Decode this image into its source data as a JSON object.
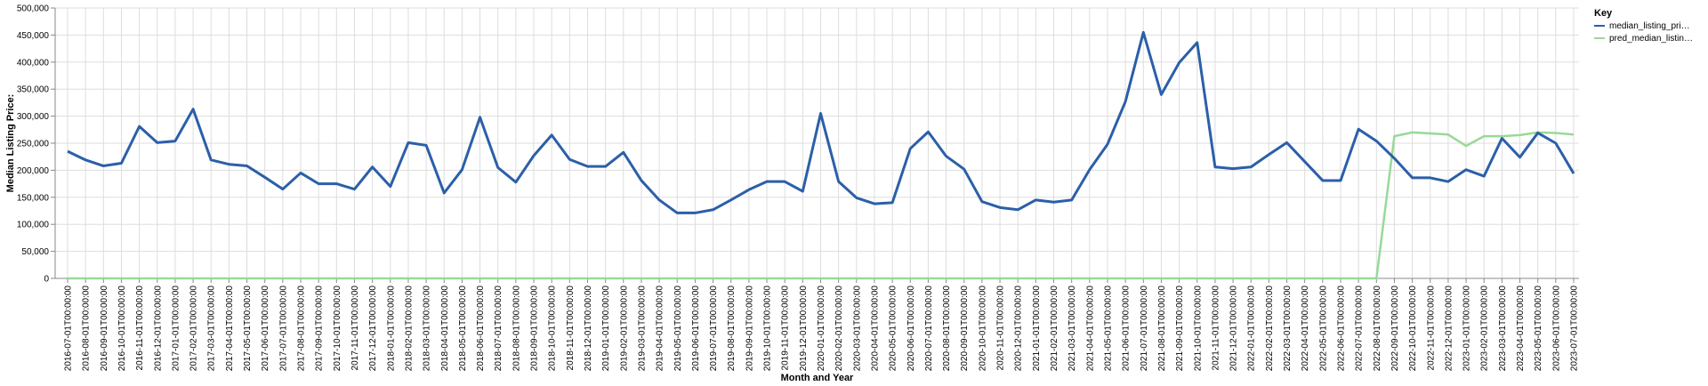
{
  "chart_data": {
    "type": "line",
    "xlabel": "Month and Year",
    "ylabel": "Median Listing Price:",
    "ylim": [
      0,
      500000
    ],
    "yticks": [
      "0",
      "50,000",
      "100,000",
      "150,000",
      "200,000",
      "250,000",
      "300,000",
      "350,000",
      "400,000",
      "450,000",
      "500,000"
    ],
    "grid": true,
    "legend": {
      "title": "Key",
      "position": "top-right",
      "entries": [
        {
          "label": "median_listing_pri…",
          "color": "#2b5fa8"
        },
        {
          "label": "pred_median_listin…",
          "color": "#98d998"
        }
      ]
    },
    "categories": [
      "2016-07-01T00:00:00",
      "2016-08-01T00:00:00",
      "2016-09-01T00:00:00",
      "2016-10-01T00:00:00",
      "2016-11-01T00:00:00",
      "2016-12-01T00:00:00",
      "2017-01-01T00:00:00",
      "2017-02-01T00:00:00",
      "2017-03-01T00:00:00",
      "2017-04-01T00:00:00",
      "2017-05-01T00:00:00",
      "2017-06-01T00:00:00",
      "2017-07-01T00:00:00",
      "2017-08-01T00:00:00",
      "2017-09-01T00:00:00",
      "2017-10-01T00:00:00",
      "2017-11-01T00:00:00",
      "2017-12-01T00:00:00",
      "2018-01-01T00:00:00",
      "2018-02-01T00:00:00",
      "2018-03-01T00:00:00",
      "2018-04-01T00:00:00",
      "2018-05-01T00:00:00",
      "2018-06-01T00:00:00",
      "2018-07-01T00:00:00",
      "2018-08-01T00:00:00",
      "2018-09-01T00:00:00",
      "2018-10-01T00:00:00",
      "2018-11-01T00:00:00",
      "2018-12-01T00:00:00",
      "2019-01-01T00:00:00",
      "2019-02-01T00:00:00",
      "2019-03-01T00:00:00",
      "2019-04-01T00:00:00",
      "2019-05-01T00:00:00",
      "2019-06-01T00:00:00",
      "2019-07-01T00:00:00",
      "2019-08-01T00:00:00",
      "2019-09-01T00:00:00",
      "2019-10-01T00:00:00",
      "2019-11-01T00:00:00",
      "2019-12-01T00:00:00",
      "2020-01-01T00:00:00",
      "2020-02-01T00:00:00",
      "2020-03-01T00:00:00",
      "2020-04-01T00:00:00",
      "2020-05-01T00:00:00",
      "2020-06-01T00:00:00",
      "2020-07-01T00:00:00",
      "2020-08-01T00:00:00",
      "2020-09-01T00:00:00",
      "2020-10-01T00:00:00",
      "2020-11-01T00:00:00",
      "2020-12-01T00:00:00",
      "2021-01-01T00:00:00",
      "2021-02-01T00:00:00",
      "2021-03-01T00:00:00",
      "2021-04-01T00:00:00",
      "2021-05-01T00:00:00",
      "2021-06-01T00:00:00",
      "2021-07-01T00:00:00",
      "2021-08-01T00:00:00",
      "2021-09-01T00:00:00",
      "2021-10-01T00:00:00",
      "2021-11-01T00:00:00",
      "2021-12-01T00:00:00",
      "2022-01-01T00:00:00",
      "2022-02-01T00:00:00",
      "2022-03-01T00:00:00",
      "2022-04-01T00:00:00",
      "2022-05-01T00:00:00",
      "2022-06-01T00:00:00",
      "2022-07-01T00:00:00",
      "2022-08-01T00:00:00",
      "2022-09-01T00:00:00",
      "2022-10-01T00:00:00",
      "2022-11-01T00:00:00",
      "2022-12-01T00:00:00",
      "2023-01-01T00:00:00",
      "2023-02-01T00:00:00",
      "2023-03-01T00:00:00",
      "2023-04-01T00:00:00",
      "2023-05-01T00:00:00",
      "2023-06-01T00:00:00",
      "2023-07-01T00:00:00"
    ],
    "series": [
      {
        "name": "median_listing_pri…",
        "color": "#2b5fa8",
        "values": [
          235000,
          219000,
          208000,
          213000,
          281000,
          251000,
          254000,
          313000,
          219000,
          211000,
          208000,
          187000,
          165000,
          195000,
          175000,
          175000,
          165000,
          206000,
          170000,
          251000,
          246000,
          158000,
          201000,
          298000,
          205000,
          178000,
          227000,
          265000,
          220000,
          207000,
          207000,
          233000,
          181000,
          145000,
          121000,
          121000,
          127000,
          145000,
          164000,
          179000,
          179000,
          161000,
          305000,
          179000,
          149000,
          138000,
          140000,
          240000,
          271000,
          226000,
          202000,
          142000,
          131000,
          127000,
          145000,
          141000,
          145000,
          201000,
          248000,
          327000,
          455000,
          340000,
          399000,
          436000,
          206000,
          203000,
          206000,
          229000,
          251000,
          216000,
          181000,
          181000,
          276000,
          254000,
          222000,
          186000,
          186000,
          179000,
          201000,
          189000,
          259000,
          224000,
          269000,
          250000,
          194000
        ]
      },
      {
        "name": "pred_median_listin…",
        "color": "#98d998",
        "values": [
          0,
          0,
          0,
          0,
          0,
          0,
          0,
          0,
          0,
          0,
          0,
          0,
          0,
          0,
          0,
          0,
          0,
          0,
          0,
          0,
          0,
          0,
          0,
          0,
          0,
          0,
          0,
          0,
          0,
          0,
          0,
          0,
          0,
          0,
          0,
          0,
          0,
          0,
          0,
          0,
          0,
          0,
          0,
          0,
          0,
          0,
          0,
          0,
          0,
          0,
          0,
          0,
          0,
          0,
          0,
          0,
          0,
          0,
          0,
          0,
          0,
          0,
          0,
          0,
          0,
          0,
          0,
          0,
          0,
          0,
          0,
          0,
          0,
          0,
          263000,
          270000,
          268000,
          266000,
          245000,
          263000,
          263000,
          265000,
          270000,
          269000,
          266000
        ]
      }
    ]
  }
}
